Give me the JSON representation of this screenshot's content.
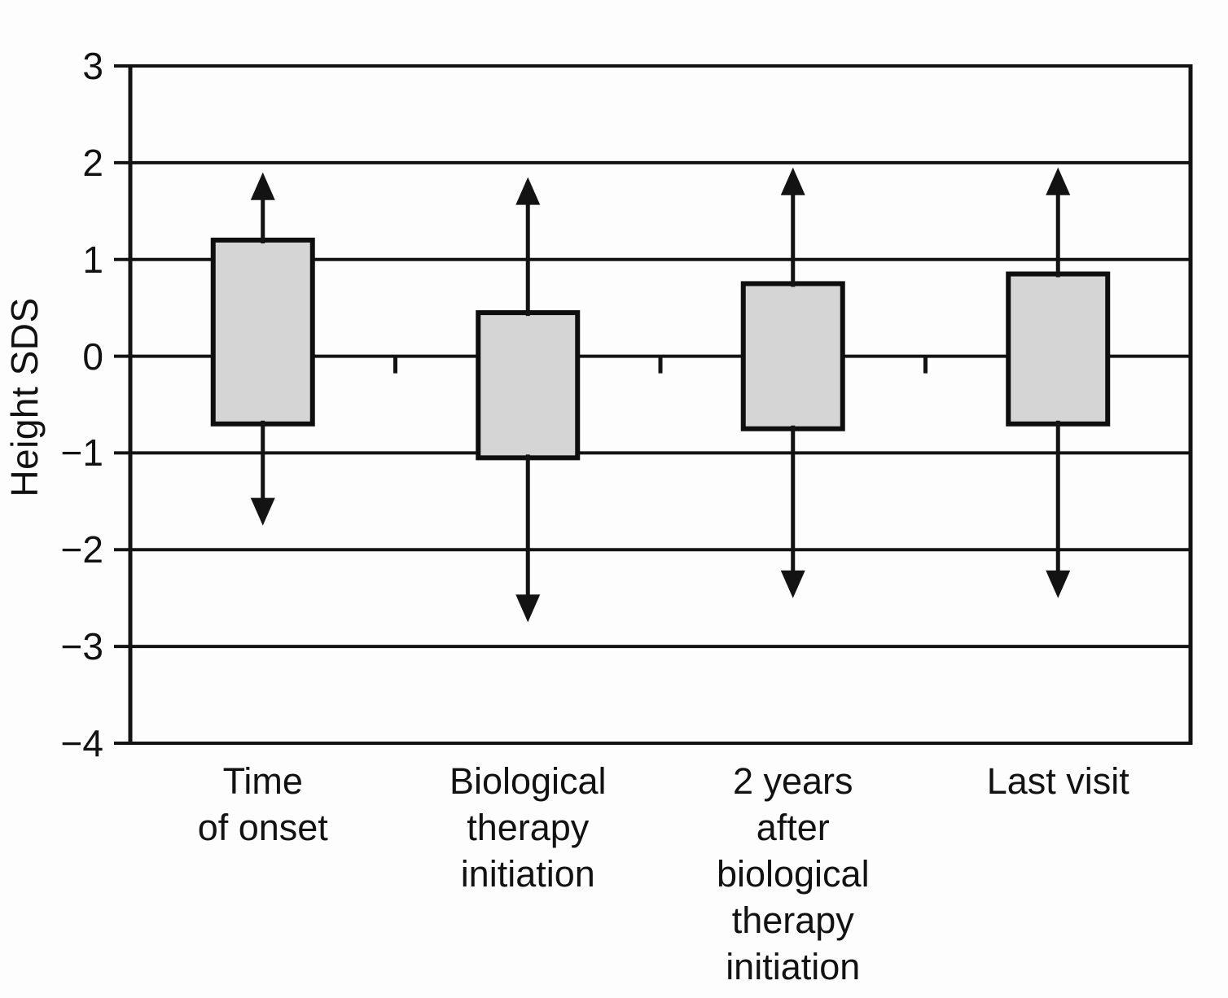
{
  "figure": {
    "background": "#fdfdfd",
    "line_color": "#131313",
    "box_fill": "#d5d5d5",
    "box_border": "#0e0e0e"
  },
  "chart_data": {
    "type": "box-whisker",
    "title": "",
    "xlabel": "",
    "ylabel": "Height SDS",
    "ylim": [
      -4,
      3
    ],
    "ytick_labels": [
      "3",
      "2",
      "1",
      "0",
      "−1",
      "−2",
      "−3",
      "−4"
    ],
    "ytick_values": [
      3,
      2,
      1,
      0,
      -1,
      -2,
      -3,
      -4
    ],
    "grid": true,
    "legend": "none",
    "categories": [
      [
        "Time",
        "of onset"
      ],
      [
        "Biological",
        "therapy",
        "initiation"
      ],
      [
        "2 years",
        "after",
        "biological",
        "therapy",
        "initiation"
      ],
      [
        "Last visit"
      ]
    ],
    "series": [
      {
        "name": "Time of onset",
        "box_low": -0.7,
        "box_high": 1.2,
        "whisker_low": -1.75,
        "whisker_high": 1.9
      },
      {
        "name": "Biological therapy initiation",
        "box_low": -1.05,
        "box_high": 0.45,
        "whisker_low": -2.75,
        "whisker_high": 1.85
      },
      {
        "name": "2 years after biological therapy initiation",
        "box_low": -0.75,
        "box_high": 0.75,
        "whisker_low": -2.5,
        "whisker_high": 1.95
      },
      {
        "name": "Last visit",
        "box_low": -0.7,
        "box_high": 0.85,
        "whisker_low": -2.5,
        "whisker_high": 1.95
      }
    ]
  }
}
